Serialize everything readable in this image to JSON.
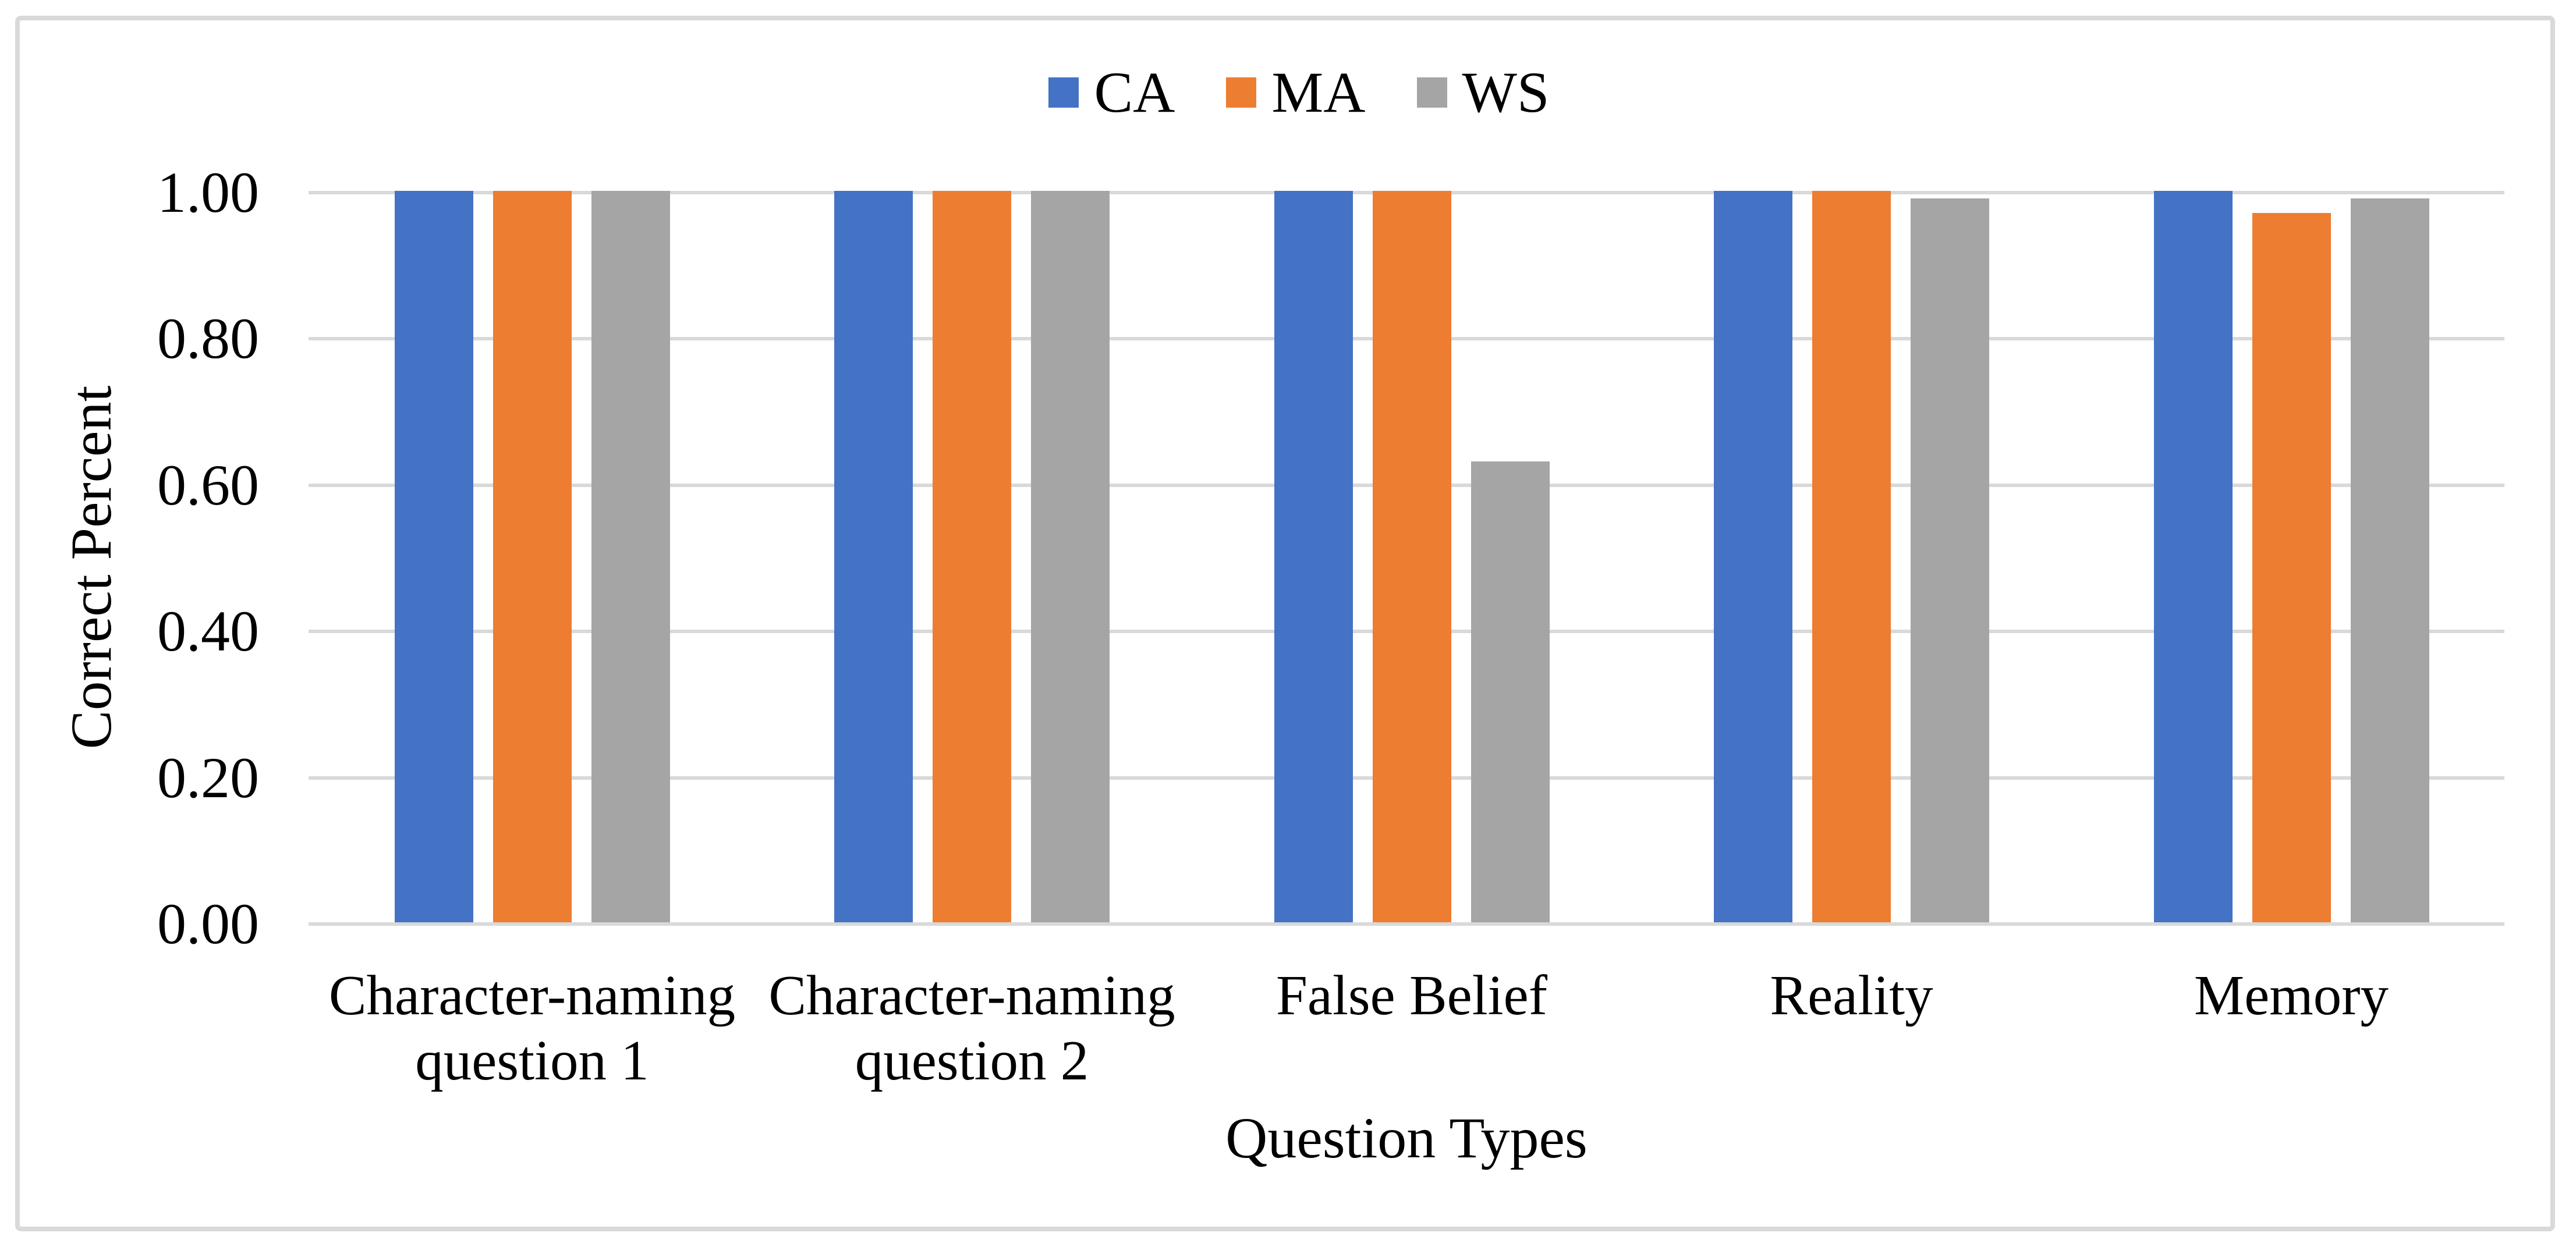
{
  "chart_data": {
    "type": "bar",
    "title": "",
    "categories": [
      "Character-naming\nquestion 1",
      "Character-naming\nquestion 2",
      "False Belief",
      "Reality",
      "Memory"
    ],
    "series": [
      {
        "name": "CA",
        "color": "#4472C4",
        "values": [
          1.0,
          1.0,
          1.0,
          1.0,
          1.0
        ]
      },
      {
        "name": "MA",
        "color": "#ED7D31",
        "values": [
          1.0,
          1.0,
          1.0,
          1.0,
          0.97
        ]
      },
      {
        "name": "WS",
        "color": "#A5A5A5",
        "values": [
          1.0,
          1.0,
          0.63,
          0.99,
          0.99
        ]
      }
    ],
    "xlabel": "Question Types",
    "ylabel": "Correct Percent",
    "ylim": [
      0,
      1
    ],
    "yticks": [
      {
        "value": 0.0,
        "label": "0.00"
      },
      {
        "value": 0.2,
        "label": "0.20"
      },
      {
        "value": 0.4,
        "label": "0.40"
      },
      {
        "value": 0.6,
        "label": "0.60"
      },
      {
        "value": 0.8,
        "label": "0.80"
      },
      {
        "value": 1.0,
        "label": "1.00"
      }
    ],
    "grid": true,
    "legend_position": "top-center",
    "colors": {
      "gridline": "#D9D9D9",
      "frame_border": "#D9D9D9",
      "background": "#FFFFFF",
      "text": "#000000"
    }
  }
}
